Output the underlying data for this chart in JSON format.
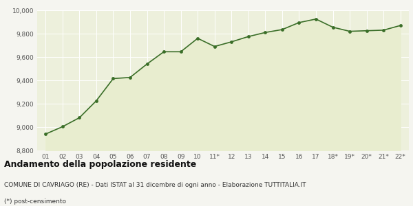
{
  "x_labels": [
    "01",
    "02",
    "03",
    "04",
    "05",
    "06",
    "07",
    "08",
    "09",
    "10",
    "11*",
    "12",
    "13",
    "14",
    "15",
    "16",
    "17",
    "18*",
    "19*",
    "20*",
    "21*",
    "22*"
  ],
  "values": [
    8940,
    9003,
    9080,
    9225,
    9415,
    9425,
    9540,
    9645,
    9645,
    9760,
    9690,
    9730,
    9775,
    9810,
    9835,
    9895,
    9925,
    9855,
    9820,
    9825,
    9830,
    9870
  ],
  "line_color": "#3a6e28",
  "fill_color": "#e8edcf",
  "marker_color": "#3a6e28",
  "bg_color": "#f5f5f0",
  "plot_bg_color": "#edf0dc",
  "grid_color": "#ffffff",
  "ylim_min": 8800,
  "ylim_max": 10000,
  "yticks": [
    8800,
    9000,
    9200,
    9400,
    9600,
    9800,
    10000
  ],
  "title": "Andamento della popolazione residente",
  "subtitle": "COMUNE DI CAVRIAGO (RE) - Dati ISTAT al 31 dicembre di ogni anno - Elaborazione TUTTITALIA.IT",
  "footnote": "(*) post-censimento",
  "title_fontsize": 9,
  "subtitle_fontsize": 6.5,
  "footnote_fontsize": 6.5,
  "tick_fontsize": 6.5,
  "marker_size": 3.5
}
